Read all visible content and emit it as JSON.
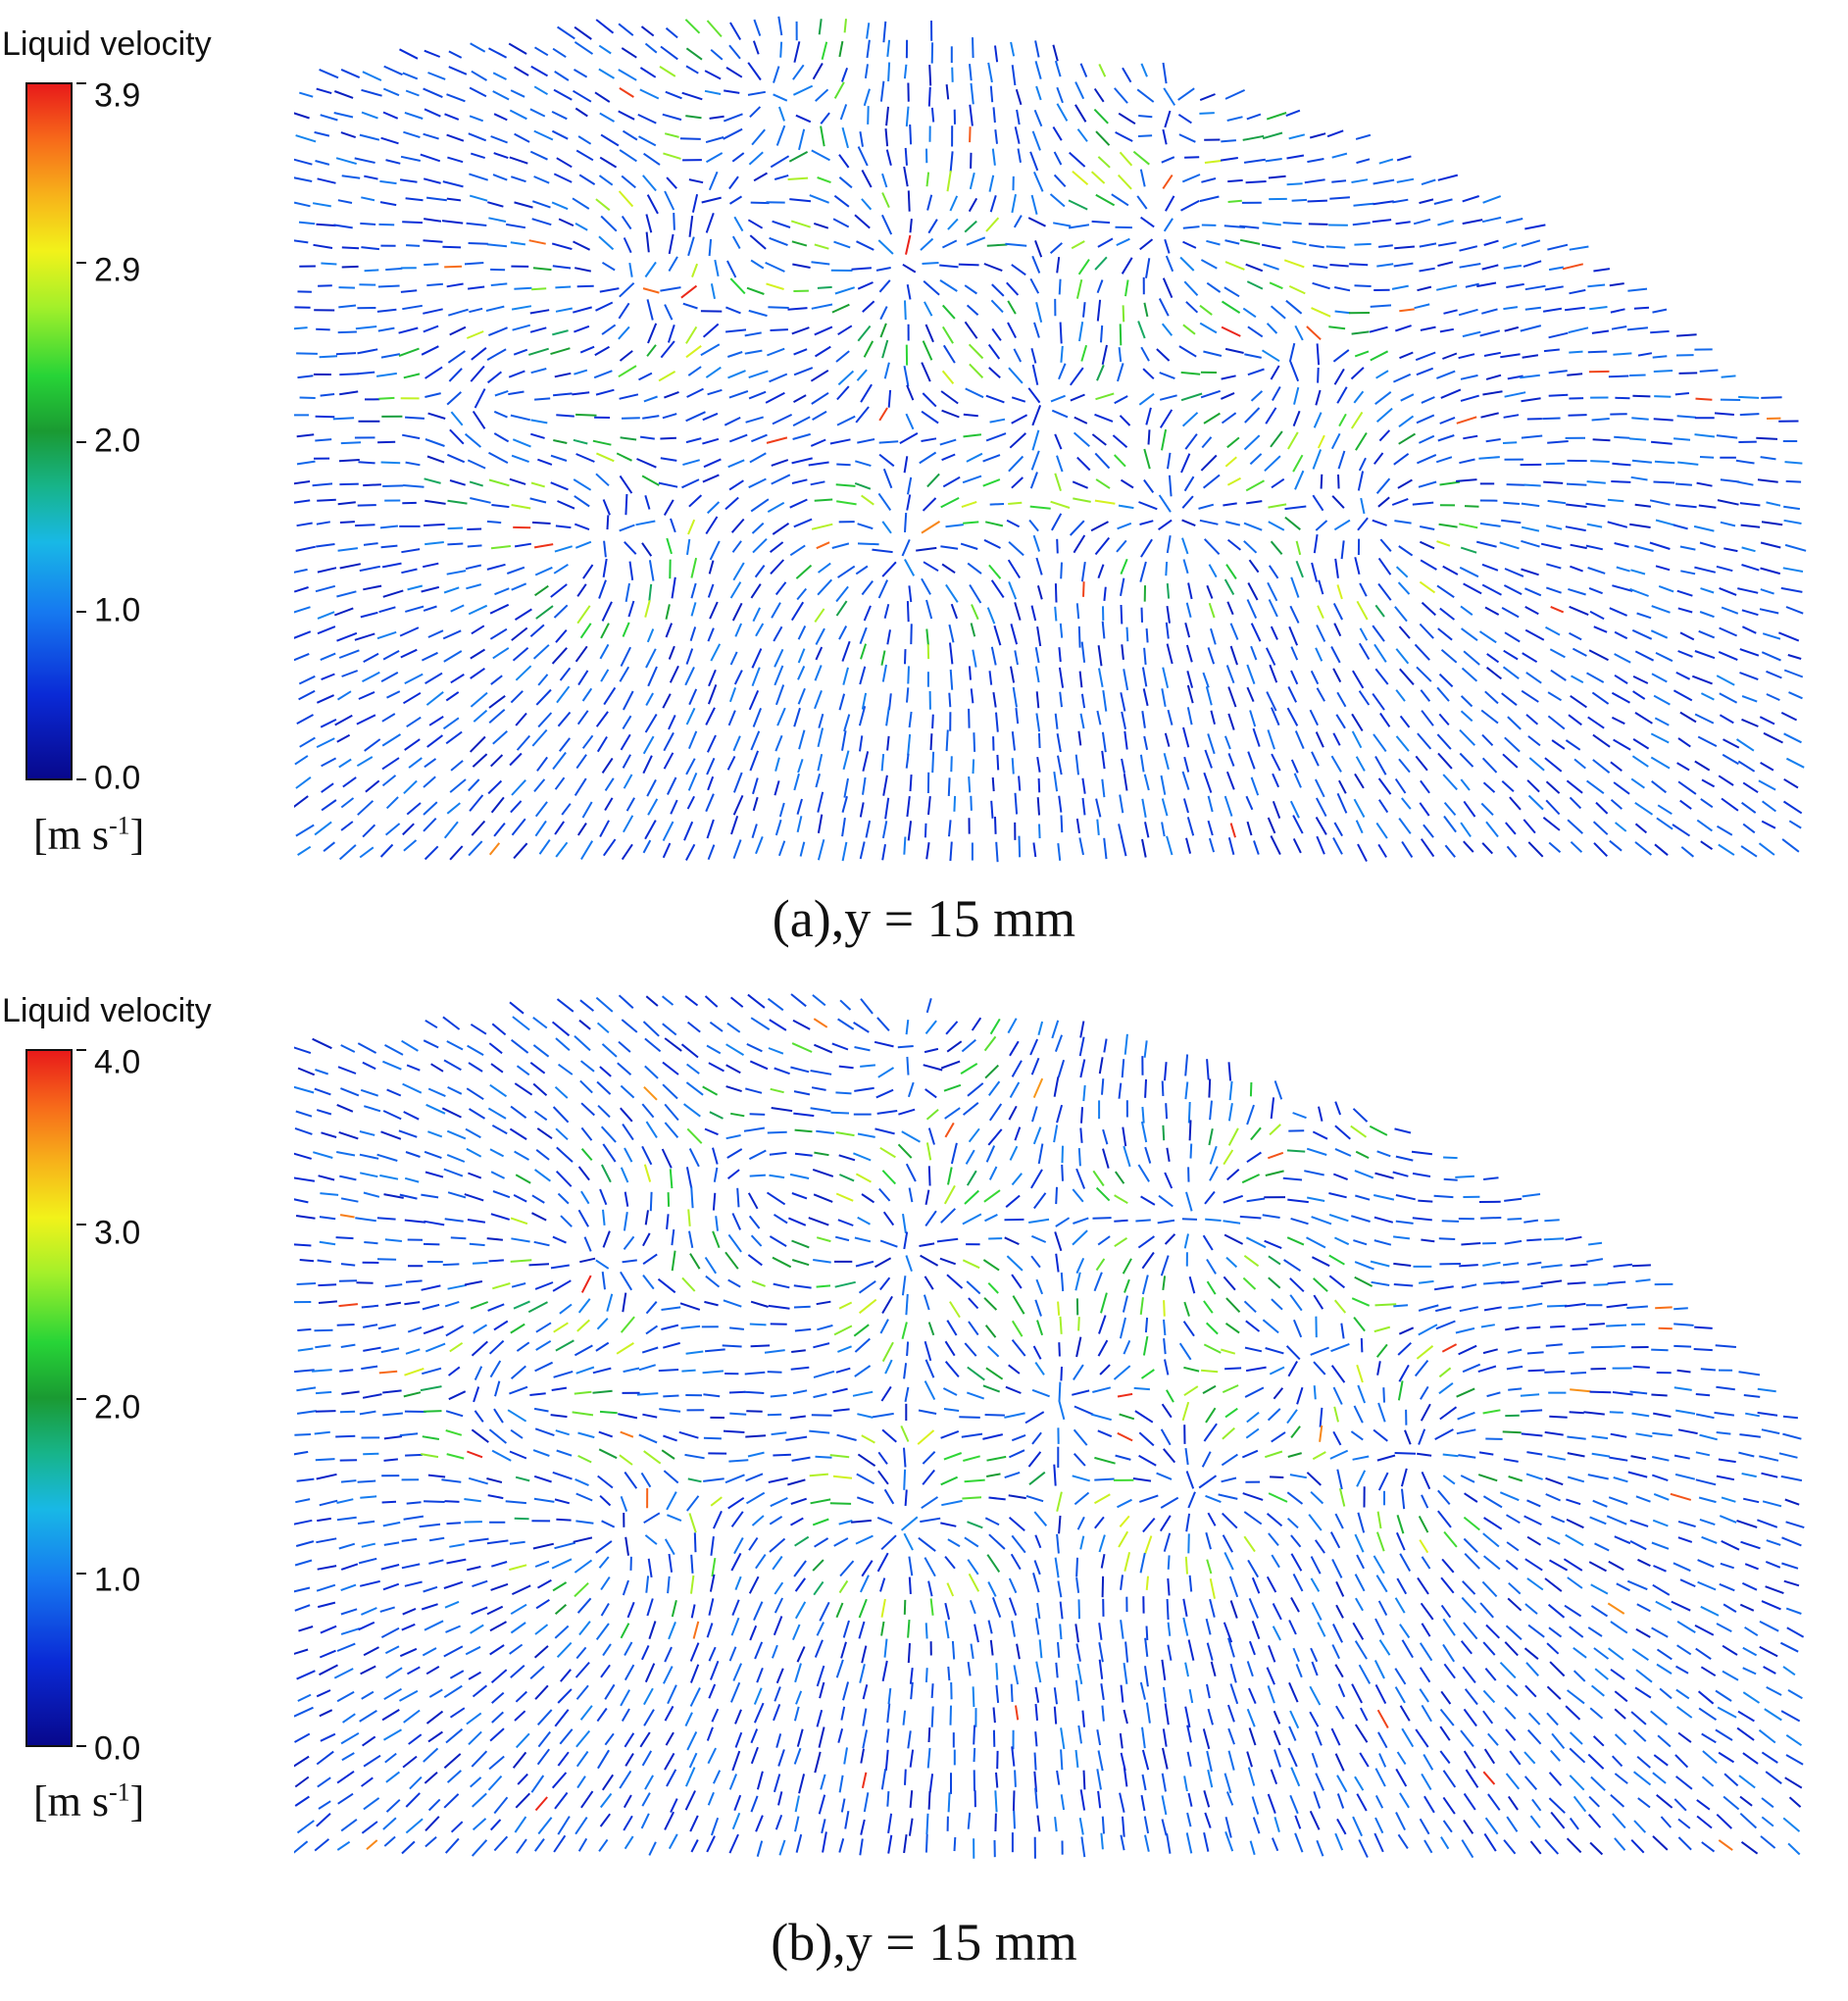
{
  "chart_data": [
    {
      "type": "vector-field",
      "caption": "(a),y = 15 mm",
      "colorbar": {
        "title": "Liquid velocity",
        "ticks": [
          3.9,
          2.9,
          2.0,
          1.0,
          0.0
        ],
        "tick_labels": [
          "3.9",
          "2.9",
          "2.0",
          "1.0",
          "0.0"
        ],
        "min": 0.0,
        "max": 3.9,
        "unit_base": "[m s",
        "unit_exp": "-1",
        "unit_close": "]"
      },
      "colormap": [
        "#08088c",
        "#0a2ad6",
        "#1679f0",
        "#18b8e6",
        "#17b48a",
        "#1a9a32",
        "#27d437",
        "#a4f02a",
        "#f2f21a",
        "#f7b21a",
        "#f76a1a",
        "#e81a1a"
      ]
    },
    {
      "type": "vector-field",
      "caption": "(b),y = 15 mm",
      "colorbar": {
        "title": "Liquid velocity",
        "ticks": [
          4.0,
          3.0,
          2.0,
          1.0,
          0.0
        ],
        "tick_labels": [
          "4.0",
          "3.0",
          "2.0",
          "1.0",
          "0.0"
        ],
        "min": 0.0,
        "max": 4.0,
        "unit_base": "[m s",
        "unit_exp": "-1",
        "unit_close": "]"
      },
      "colormap": [
        "#08088c",
        "#0a2ad6",
        "#1679f0",
        "#18b8e6",
        "#17b48a",
        "#1a9a32",
        "#27d437",
        "#a4f02a",
        "#f2f21a",
        "#f7b21a",
        "#f76a1a",
        "#e81a1a"
      ]
    }
  ]
}
